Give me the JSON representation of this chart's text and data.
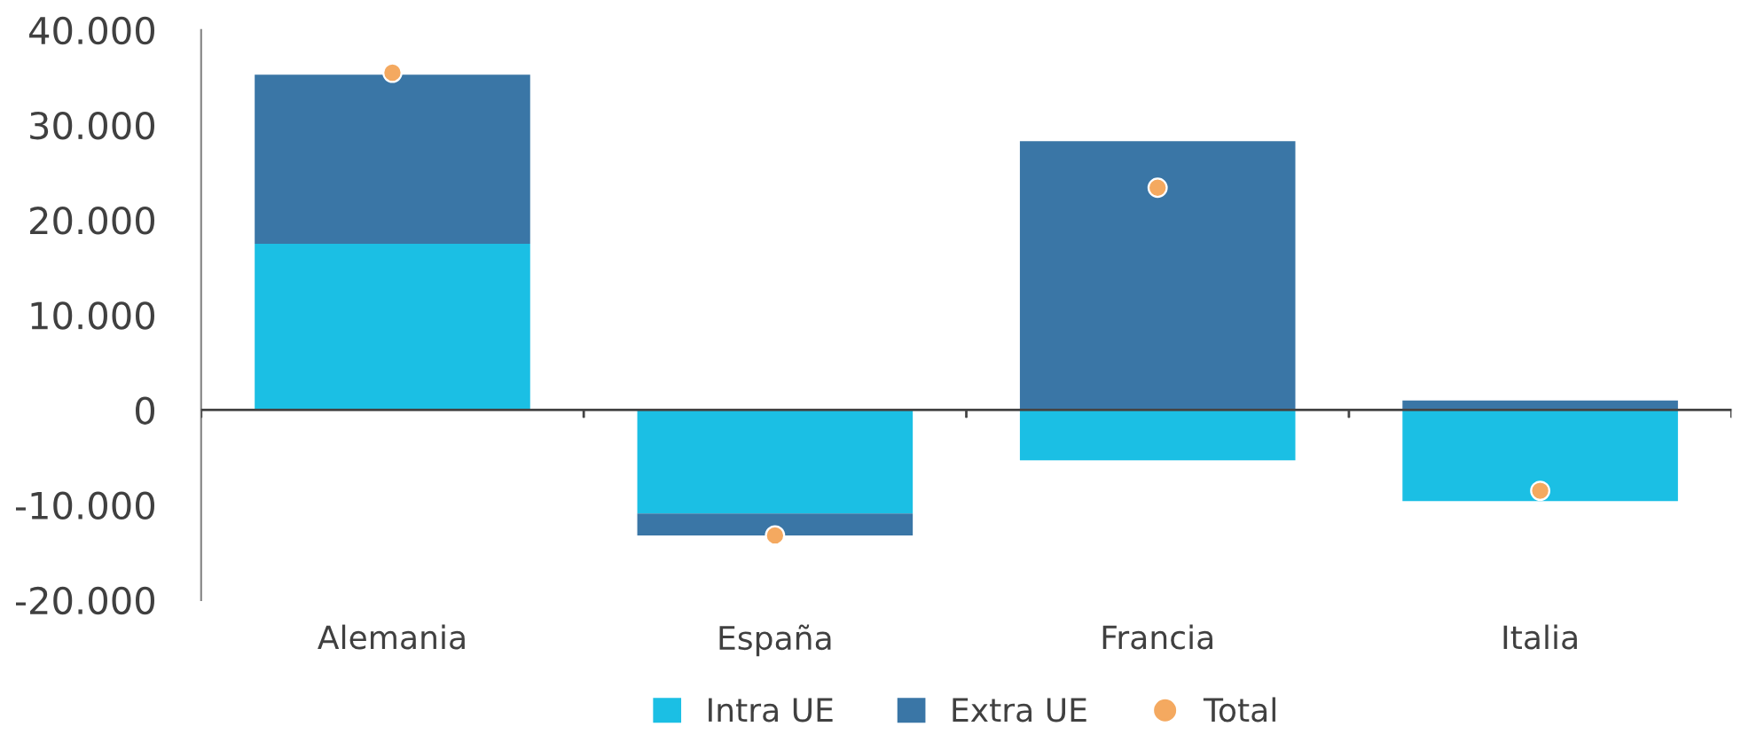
{
  "chart_data": {
    "type": "bar",
    "stacked": true,
    "categories": [
      "Alemania",
      "España",
      "Francia",
      "Italia"
    ],
    "series": [
      {
        "name": "Intra UE",
        "color": "#1bbfe4",
        "values": [
          17500,
          -10900,
          -5300,
          -9600
        ]
      },
      {
        "name": "Extra UE",
        "color": "#3a76a6",
        "values": [
          17800,
          -2300,
          28300,
          1000
        ]
      },
      {
        "name": "Total",
        "type": "scatter",
        "color": "#f4a960",
        "x": [
          "Alemania",
          "España",
          "Francia",
          "Italia"
        ],
        "values": [
          35500,
          -13200,
          23400,
          -8500
        ]
      }
    ],
    "ylim": [
      -20000,
      40000
    ],
    "yticks": [
      {
        "value": -20000,
        "label": "-20.000"
      },
      {
        "value": -10000,
        "label": "-10.000"
      },
      {
        "value": 0,
        "label": "0"
      },
      {
        "value": 10000,
        "label": "10.000"
      },
      {
        "value": 20000,
        "label": "20.000"
      },
      {
        "value": 30000,
        "label": "30.000"
      },
      {
        "value": 40000,
        "label": "40.000"
      }
    ],
    "grid": false,
    "ref_lines": [
      {
        "axis": "y",
        "value": 0,
        "color": "#444444"
      }
    ],
    "legend": "bottom",
    "marker": "circle"
  }
}
